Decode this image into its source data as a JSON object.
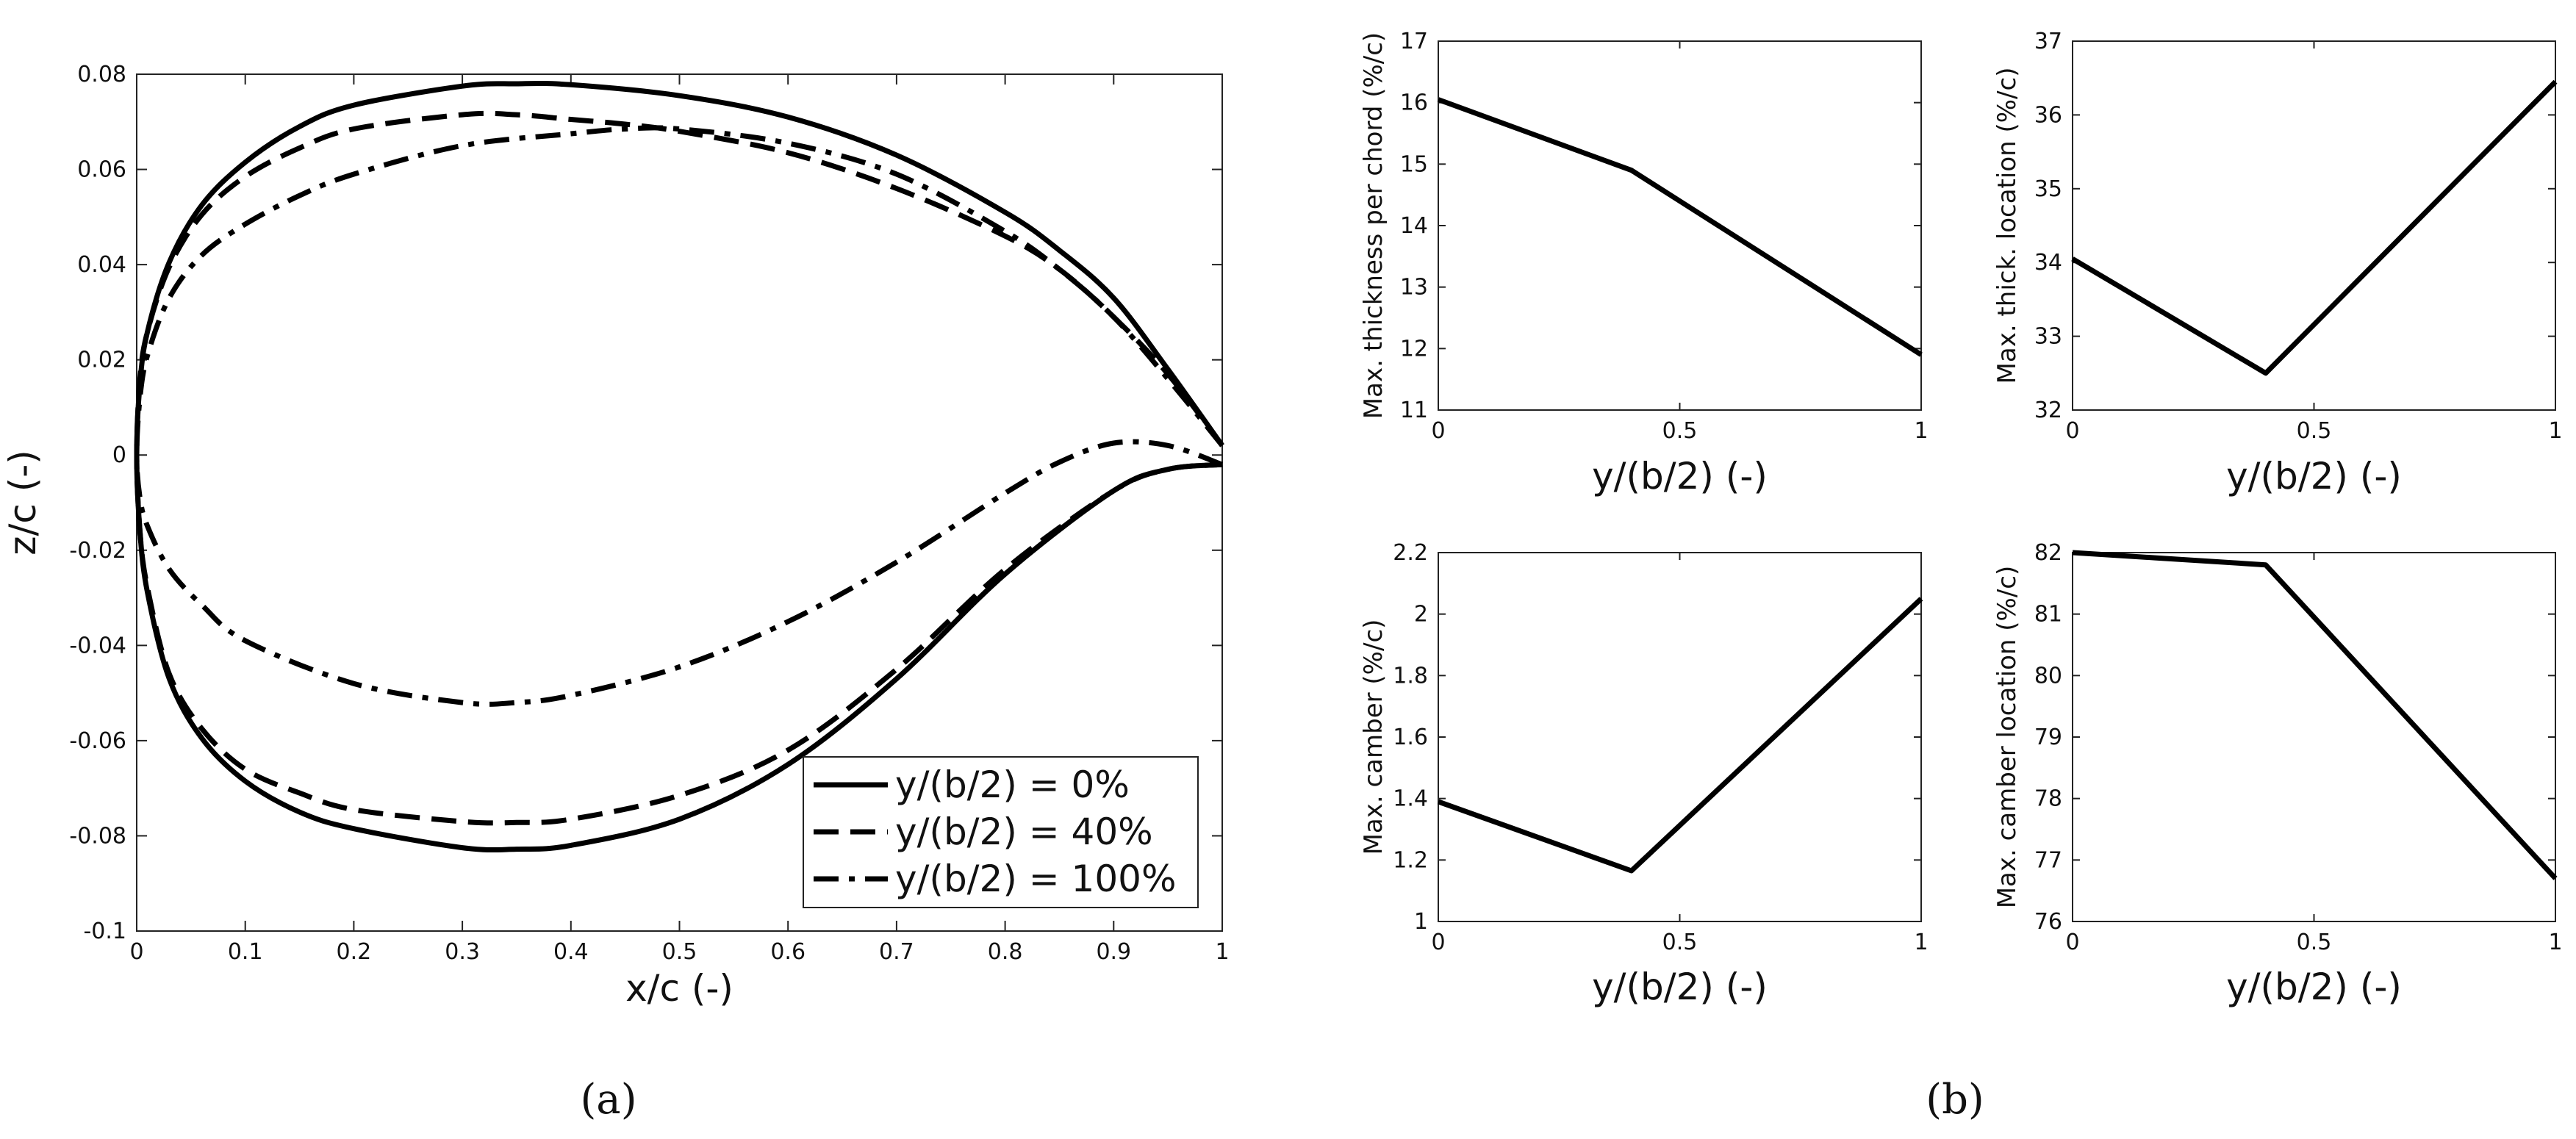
{
  "chart_data": [
    {
      "type": "line",
      "panel": "a",
      "caption": "(a)",
      "xlabel": "x/c (-)",
      "ylabel": "z/c (-)",
      "xlim": [
        0,
        1
      ],
      "ylim": [
        -0.1,
        0.08
      ],
      "xticks": [
        0,
        0.1,
        0.2,
        0.3,
        0.4,
        0.5,
        0.6,
        0.7,
        0.8,
        0.9,
        1
      ],
      "xtick_labels": [
        "0",
        "0.1",
        "0.2",
        "0.3",
        "0.4",
        "0.5",
        "0.6",
        "0.7",
        "0.8",
        "0.9",
        "1"
      ],
      "yticks": [
        -0.1,
        -0.08,
        -0.06,
        -0.04,
        -0.02,
        0,
        0.02,
        0.04,
        0.06,
        0.08
      ],
      "ytick_labels": [
        "-0.1",
        "-0.08",
        "-0.06",
        "-0.04",
        "-0.02",
        "0",
        "0.02",
        "0.04",
        "0.06",
        "0.08"
      ],
      "legend_position": "bottom-right",
      "series": [
        {
          "name": "y/(b/2) = 0%",
          "style": "solid",
          "x": [
            1,
            0.95,
            0.9,
            0.85,
            0.8,
            0.7,
            0.6,
            0.5,
            0.4,
            0.35,
            0.3,
            0.2,
            0.15,
            0.1,
            0.06,
            0.03,
            0.01,
            0.003,
            0,
            0.003,
            0.01,
            0.03,
            0.06,
            0.1,
            0.15,
            0.2,
            0.3,
            0.35,
            0.4,
            0.5,
            0.6,
            0.7,
            0.8,
            0.9,
            0.95,
            1
          ],
          "y": [
            0.002,
            0.018,
            0.033,
            0.043,
            0.051,
            0.063,
            0.071,
            0.0755,
            0.0778,
            0.078,
            0.0775,
            0.0735,
            0.069,
            0.0615,
            0.0525,
            0.0405,
            0.026,
            0.015,
            0,
            -0.016,
            -0.029,
            -0.047,
            -0.0595,
            -0.0685,
            -0.075,
            -0.0785,
            -0.0825,
            -0.0828,
            -0.082,
            -0.0765,
            -0.065,
            -0.047,
            -0.025,
            -0.0075,
            -0.003,
            -0.002
          ]
        },
        {
          "name": "y/(b/2) = 40%",
          "style": "dashed",
          "x": [
            1,
            0.95,
            0.9,
            0.85,
            0.8,
            0.7,
            0.6,
            0.5,
            0.45,
            0.4,
            0.35,
            0.3,
            0.2,
            0.15,
            0.1,
            0.06,
            0.03,
            0.01,
            0.003,
            0,
            0.003,
            0.01,
            0.03,
            0.06,
            0.1,
            0.15,
            0.2,
            0.3,
            0.35,
            0.4,
            0.5,
            0.6,
            0.7,
            0.8,
            0.9,
            0.95,
            1
          ],
          "y": [
            0.002,
            0.017,
            0.029,
            0.039,
            0.046,
            0.056,
            0.0635,
            0.068,
            0.0695,
            0.0705,
            0.0715,
            0.0715,
            0.0685,
            0.0645,
            0.0585,
            0.0505,
            0.0395,
            0.026,
            0.016,
            0,
            -0.016,
            -0.028,
            -0.046,
            -0.0575,
            -0.066,
            -0.071,
            -0.0745,
            -0.077,
            -0.0772,
            -0.0765,
            -0.0715,
            -0.062,
            -0.045,
            -0.024,
            -0.0075,
            -0.003,
            -0.002
          ]
        },
        {
          "name": "y/(b/2) = 100%",
          "style": "dashdot",
          "x": [
            1,
            0.95,
            0.9,
            0.85,
            0.8,
            0.7,
            0.6,
            0.5,
            0.45,
            0.4,
            0.3,
            0.2,
            0.15,
            0.1,
            0.06,
            0.03,
            0.01,
            0.003,
            0,
            0.003,
            0.01,
            0.03,
            0.06,
            0.1,
            0.2,
            0.3,
            0.35,
            0.4,
            0.5,
            0.6,
            0.7,
            0.8,
            0.85,
            0.9,
            0.95,
            1
          ],
          "y": [
            0.002,
            0.016,
            0.029,
            0.039,
            0.047,
            0.059,
            0.0655,
            0.0685,
            0.0685,
            0.0675,
            0.065,
            0.059,
            0.0545,
            0.0485,
            0.042,
            0.033,
            0.021,
            0.012,
            0,
            -0.009,
            -0.015,
            -0.024,
            -0.0315,
            -0.039,
            -0.048,
            -0.052,
            -0.052,
            -0.0505,
            -0.0445,
            -0.035,
            -0.0225,
            -0.008,
            -0.0015,
            0.0025,
            0.002,
            -0.002
          ]
        }
      ]
    },
    {
      "type": "line",
      "panel": "b1",
      "xlabel": "y/(b/2) (-)",
      "ylabel": "Max. thickness per chord (%/c)",
      "xlim": [
        0,
        1
      ],
      "ylim": [
        11,
        17
      ],
      "xticks": [
        0,
        0.5,
        1
      ],
      "xtick_labels": [
        "0",
        "0.5",
        "1"
      ],
      "yticks": [
        11,
        12,
        13,
        14,
        15,
        16,
        17
      ],
      "ytick_labels": [
        "11",
        "12",
        "13",
        "14",
        "15",
        "16",
        "17"
      ],
      "series": [
        {
          "name": "",
          "x": [
            0,
            0.4,
            1
          ],
          "y": [
            16.05,
            14.9,
            11.9
          ]
        }
      ]
    },
    {
      "type": "line",
      "panel": "b2",
      "xlabel": "y/(b/2) (-)",
      "ylabel": "Max. thick. location  (%/c)",
      "xlim": [
        0,
        1
      ],
      "ylim": [
        32,
        37
      ],
      "xticks": [
        0,
        0.5,
        1
      ],
      "xtick_labels": [
        "0",
        "0.5",
        "1"
      ],
      "yticks": [
        32,
        33,
        34,
        35,
        36,
        37
      ],
      "ytick_labels": [
        "32",
        "33",
        "34",
        "35",
        "36",
        "37"
      ],
      "series": [
        {
          "name": "",
          "x": [
            0,
            0.4,
            1
          ],
          "y": [
            34.05,
            32.5,
            36.45
          ]
        }
      ]
    },
    {
      "type": "line",
      "panel": "b3",
      "xlabel": "y/(b/2) (-)",
      "ylabel": "Max. camber (%/c)",
      "xlim": [
        0,
        1
      ],
      "ylim": [
        1,
        2.2
      ],
      "xticks": [
        0,
        0.5,
        1
      ],
      "xtick_labels": [
        "0",
        "0.5",
        "1"
      ],
      "yticks": [
        1,
        1.2,
        1.4,
        1.6,
        1.8,
        2,
        2.2
      ],
      "ytick_labels": [
        "1",
        "1.2",
        "1.4",
        "1.6",
        "1.8",
        "2",
        "2.2"
      ],
      "series": [
        {
          "name": "",
          "x": [
            0,
            0.4,
            1
          ],
          "y": [
            1.39,
            1.165,
            2.05
          ]
        }
      ]
    },
    {
      "type": "line",
      "panel": "b4",
      "xlabel": "y/(b/2) (-)",
      "ylabel": "Max. camber location (%/c)",
      "xlim": [
        0,
        1
      ],
      "ylim": [
        76,
        82
      ],
      "xticks": [
        0,
        0.5,
        1
      ],
      "xtick_labels": [
        "0",
        "0.5",
        "1"
      ],
      "yticks": [
        76,
        77,
        78,
        79,
        80,
        81,
        82
      ],
      "ytick_labels": [
        "76",
        "77",
        "78",
        "79",
        "80",
        "81",
        "82"
      ],
      "series": [
        {
          "name": "",
          "x": [
            0,
            0.4,
            1
          ],
          "y": [
            82,
            81.8,
            76.7
          ]
        }
      ]
    }
  ],
  "captions": {
    "a": "(a)",
    "b": "(b)"
  }
}
